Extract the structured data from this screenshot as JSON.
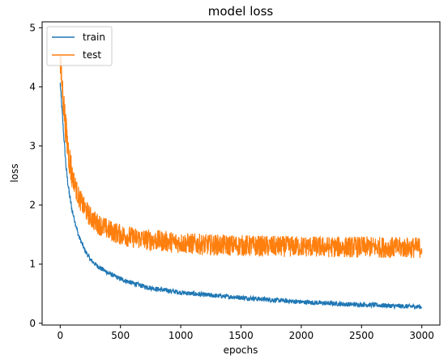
{
  "chart_data": {
    "type": "line",
    "title": "model loss",
    "xlabel": "epochs",
    "ylabel": "loss",
    "xlim": [
      -150,
      3150
    ],
    "ylim": [
      -0.03,
      5.1
    ],
    "xticks": [
      0,
      500,
      1000,
      1500,
      2000,
      2500,
      3000
    ],
    "yticks": [
      0,
      1,
      2,
      3,
      4,
      5
    ],
    "xtick_labels": [
      "0",
      "500",
      "1000",
      "1500",
      "2000",
      "2500",
      "3000"
    ],
    "ytick_labels": [
      "0",
      "1",
      "2",
      "3",
      "4",
      "5"
    ],
    "grid": false,
    "legend_position": "upper-left",
    "x": [
      0,
      25,
      50,
      75,
      100,
      150,
      200,
      250,
      300,
      400,
      500,
      600,
      700,
      800,
      900,
      1000,
      1200,
      1400,
      1600,
      1800,
      2000,
      2200,
      2400,
      2600,
      2800,
      3000
    ],
    "series": [
      {
        "name": "train",
        "color": "#1f77b4",
        "noise": 0.04,
        "values": [
          4.05,
          3.3,
          2.6,
          2.2,
          1.9,
          1.5,
          1.25,
          1.08,
          0.98,
          0.85,
          0.75,
          0.68,
          0.62,
          0.58,
          0.55,
          0.52,
          0.48,
          0.45,
          0.42,
          0.39,
          0.36,
          0.34,
          0.32,
          0.31,
          0.29,
          0.28
        ]
      },
      {
        "name": "test",
        "color": "#ff7f0e",
        "noise": 0.18,
        "values": [
          4.4,
          3.8,
          3.2,
          2.8,
          2.5,
          2.15,
          1.95,
          1.8,
          1.7,
          1.58,
          1.5,
          1.45,
          1.42,
          1.4,
          1.38,
          1.36,
          1.33,
          1.32,
          1.31,
          1.3,
          1.3,
          1.29,
          1.29,
          1.29,
          1.28,
          1.28
        ]
      }
    ]
  }
}
